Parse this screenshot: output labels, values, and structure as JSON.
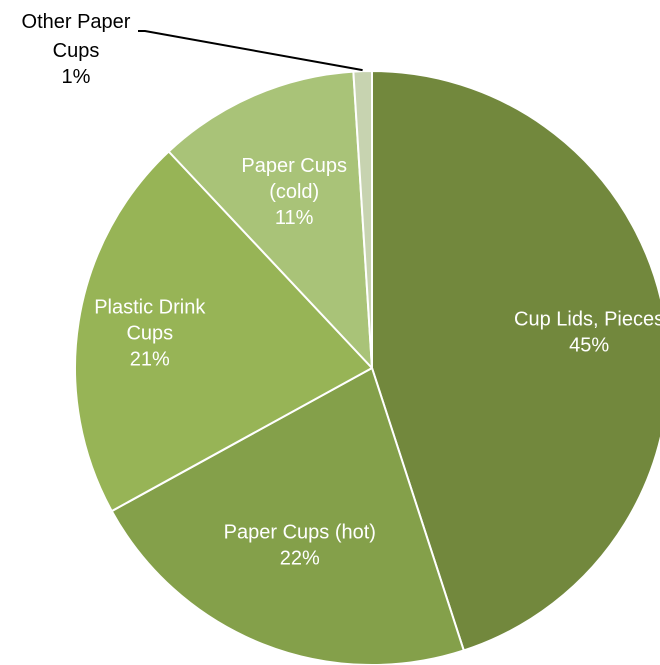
{
  "chart_data": {
    "type": "pie",
    "title": "",
    "slices": [
      {
        "label_lines": [
          "Cup Lids, Pieces",
          "45%"
        ],
        "value": 45,
        "color": "#72883d"
      },
      {
        "label_lines": [
          "Paper Cups (hot)",
          "22%"
        ],
        "value": 22,
        "color": "#84a04a"
      },
      {
        "label_lines": [
          "Plastic Drink",
          "Cups",
          "21%"
        ],
        "value": 21,
        "color": "#97b456"
      },
      {
        "label_lines": [
          "Paper Cups",
          "(cold)",
          "11%"
        ],
        "value": 11,
        "color": "#a9c378"
      },
      {
        "label_lines": [
          "Other Paper",
          "Cups",
          "1%"
        ],
        "value": 1,
        "color": "#c7d3b0"
      }
    ],
    "start_angle": "12 o'clock",
    "direction": "clockwise",
    "slice_border_color": "#ffffff",
    "label_placement": [
      "inside",
      "inside",
      "inside",
      "inside",
      "outside-with-leader"
    ]
  }
}
